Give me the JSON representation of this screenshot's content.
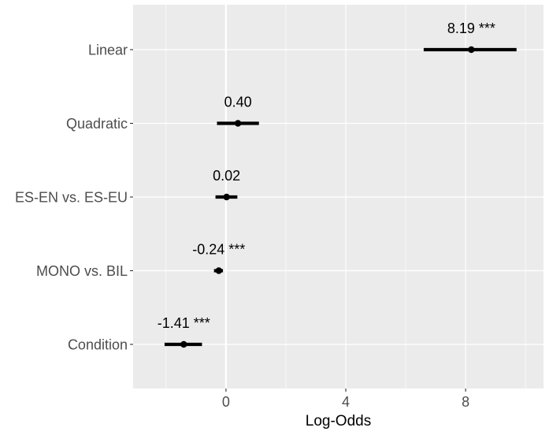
{
  "chart_data": {
    "type": "forest",
    "xlabel": "Log-Odds",
    "ylabel": "",
    "xlim": [
      -3.1,
      10.6
    ],
    "x_ticks": [
      0,
      4,
      8
    ],
    "x_tick_labels": [
      "0",
      "4",
      "8"
    ],
    "reference_line_x": 0,
    "grid": true,
    "categories": [
      "Linear",
      "Quadratic",
      "ES-EN vs. ES-EU",
      "MONO vs. BIL",
      "Condition"
    ],
    "points": [
      {
        "term": "Linear",
        "estimate": 8.19,
        "ci_low": 6.6,
        "ci_high": 9.7,
        "label": "8.19 ***"
      },
      {
        "term": "Quadratic",
        "estimate": 0.4,
        "ci_low": -0.3,
        "ci_high": 1.1,
        "label": "0.40"
      },
      {
        "term": "ES-EN vs. ES-EU",
        "estimate": 0.02,
        "ci_low": -0.35,
        "ci_high": 0.38,
        "label": "0.02"
      },
      {
        "term": "MONO vs. BIL",
        "estimate": -0.24,
        "ci_low": -0.4,
        "ci_high": -0.1,
        "label": "-0.24 ***"
      },
      {
        "term": "Condition",
        "estimate": -1.41,
        "ci_low": -2.05,
        "ci_high": -0.8,
        "label": "-1.41 ***"
      }
    ],
    "colors": {
      "panel": "#ebebeb",
      "grid": "#ffffff",
      "points": "#000000"
    }
  }
}
